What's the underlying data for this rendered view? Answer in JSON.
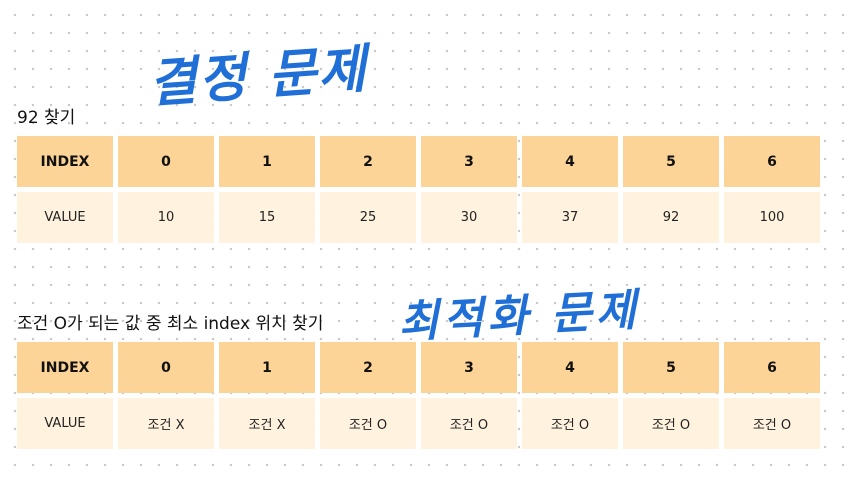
{
  "annotations": {
    "handwritten_1": "결정 문제",
    "handwritten_2": "최적화 문제"
  },
  "section1": {
    "title": "92 찾기",
    "row_header_index": "INDEX",
    "row_header_value": "VALUE",
    "indices": [
      "0",
      "1",
      "2",
      "3",
      "4",
      "5",
      "6"
    ],
    "values": [
      "10",
      "15",
      "25",
      "30",
      "37",
      "92",
      "100"
    ]
  },
  "section2": {
    "title": "조건 O가 되는 값 중 최소 index 위치 찾기",
    "row_header_index": "INDEX",
    "row_header_value": "VALUE",
    "indices": [
      "0",
      "1",
      "2",
      "3",
      "4",
      "5",
      "6"
    ],
    "values": [
      "조건 X",
      "조건 X",
      "조건 O",
      "조건 O",
      "조건 O",
      "조건 O",
      "조건 O"
    ]
  },
  "colors": {
    "header_fill": "#fdd497",
    "value_fill": "#fff2de",
    "handwriting": "#1f6fd6"
  }
}
